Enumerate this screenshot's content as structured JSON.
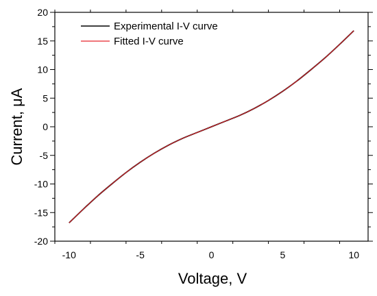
{
  "chart_data": {
    "type": "line",
    "xlabel": "Voltage, V",
    "ylabel": "Current, μA",
    "xlim": [
      -11,
      11
    ],
    "ylim": [
      -20,
      20
    ],
    "x_major_ticks": [
      -10,
      -5,
      0,
      5,
      10
    ],
    "y_major_ticks": [
      -20,
      -15,
      -10,
      -5,
      0,
      5,
      10,
      15,
      20
    ],
    "grid": false,
    "legend_position": "top-left",
    "series": [
      {
        "name": "Experimental I-V curve",
        "color": "#000000",
        "x": [
          -10,
          -9,
          -8,
          -7,
          -6,
          -5,
          -4,
          -3,
          -2,
          -1,
          0,
          1,
          2,
          3,
          4,
          5,
          6,
          7,
          8,
          9,
          10
        ],
        "y": [
          -16.8,
          -14.4,
          -12.1,
          -10.0,
          -8.0,
          -6.2,
          -4.6,
          -3.2,
          -2.0,
          -1.0,
          0.0,
          1.0,
          2.0,
          3.2,
          4.6,
          6.2,
          8.0,
          10.0,
          12.1,
          14.4,
          16.8
        ]
      },
      {
        "name": "Fitted I-V curve",
        "color": "#e8232a",
        "x": [
          -10,
          -9,
          -8,
          -7,
          -6,
          -5,
          -4,
          -3,
          -2,
          -1,
          0,
          1,
          2,
          3,
          4,
          5,
          6,
          7,
          8,
          9,
          10
        ],
        "y": [
          -16.8,
          -14.4,
          -12.1,
          -10.0,
          -8.0,
          -6.2,
          -4.6,
          -3.2,
          -2.0,
          -1.0,
          0.0,
          1.0,
          2.0,
          3.2,
          4.6,
          6.2,
          8.0,
          10.0,
          12.1,
          14.4,
          16.8
        ]
      }
    ]
  }
}
